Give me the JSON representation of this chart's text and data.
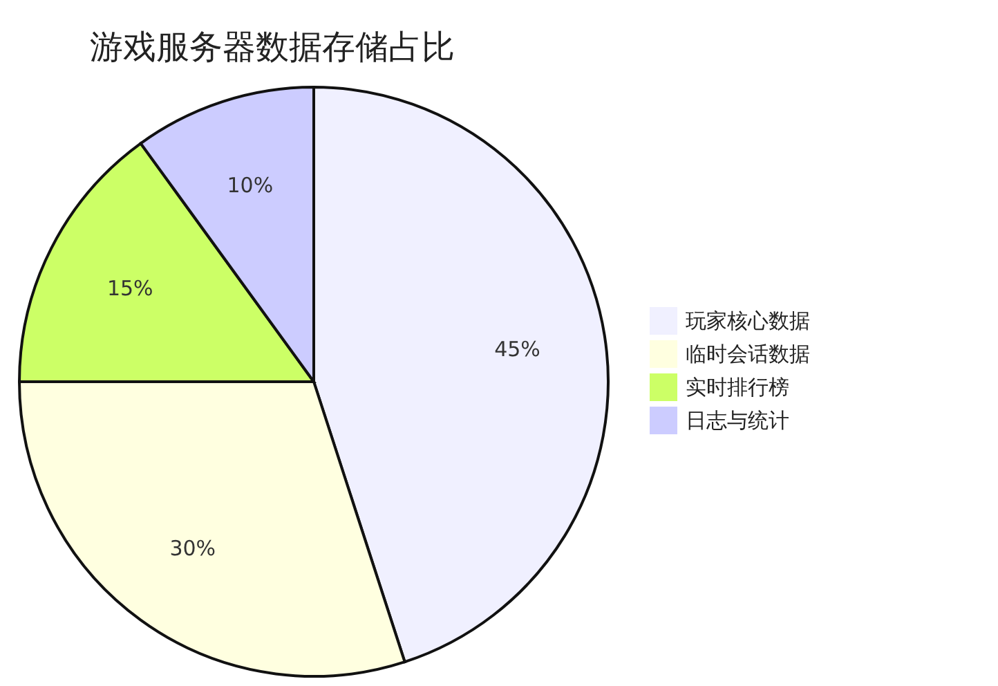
{
  "chart_data": {
    "type": "pie",
    "title": "游戏服务器数据存储占比",
    "categories": [
      "玩家核心数据",
      "临时会话数据",
      "实时排行榜",
      "日志与统计"
    ],
    "values": [
      45,
      30,
      15,
      10
    ],
    "colors": [
      "#f0f0ff",
      "#ffffe0",
      "#ccff66",
      "#ccccff"
    ],
    "value_labels": [
      "45%",
      "30%",
      "15%",
      "10%"
    ],
    "legend": "right"
  }
}
